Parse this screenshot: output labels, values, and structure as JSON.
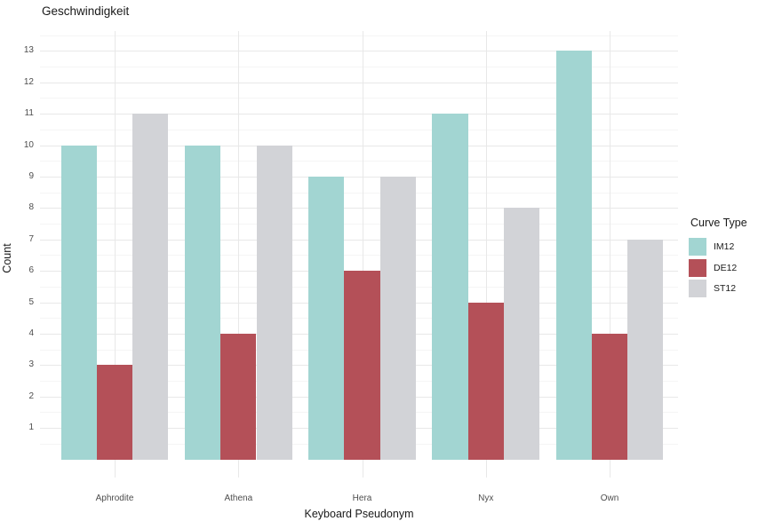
{
  "chart_data": {
    "type": "bar",
    "title": "Geschwindigkeit",
    "xlabel": "Keyboard Pseudonym",
    "ylabel": "Count",
    "legend_title": "Curve Type",
    "legend_position": "right",
    "categories": [
      "Aphrodite",
      "Athena",
      "Hera",
      "Nyx",
      "Own"
    ],
    "series": [
      {
        "name": "IM12",
        "color": "#a2d5d2",
        "values": [
          10,
          10,
          9,
          11,
          13
        ]
      },
      {
        "name": "DE12",
        "color": "#b45058",
        "values": [
          3,
          4,
          6,
          5,
          4
        ]
      },
      {
        "name": "ST12",
        "color": "#d2d3d7",
        "values": [
          11,
          10,
          9,
          8,
          7
        ]
      }
    ],
    "yticks": [
      1,
      2,
      3,
      4,
      5,
      6,
      7,
      8,
      9,
      10,
      11,
      12,
      13
    ],
    "ylim": [
      0,
      13.65
    ],
    "grid": "major+minor",
    "background": "#ffffff",
    "gridline_major_color": "#e8e8e8",
    "gridline_minor_color": "#f5f5f5",
    "tick_text_color": "#4d4d4d",
    "title_text_color": "#1a1a1a"
  }
}
